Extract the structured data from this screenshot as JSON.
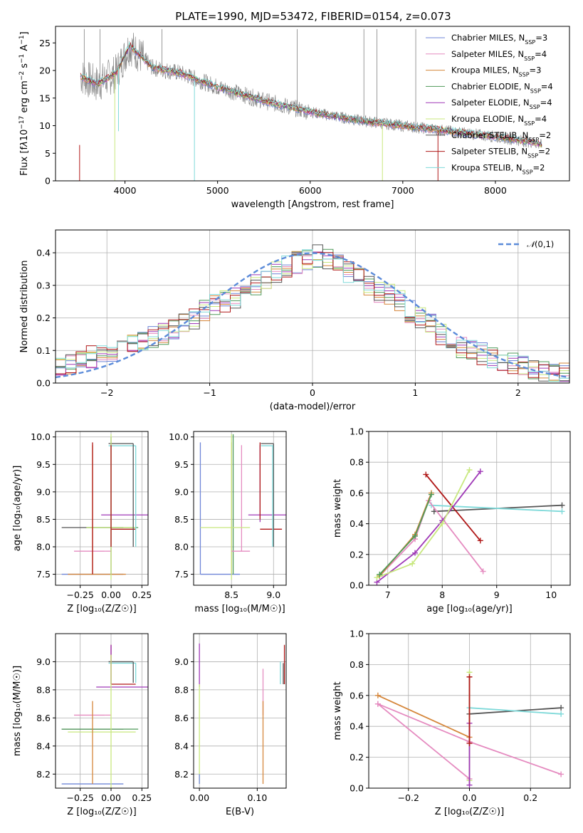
{
  "title": "PLATE=1990, MJD=53472, FIBERID=0154, z=0.073",
  "colors": {
    "chabrier_miles": "#6f86d8",
    "salpeter_miles": "#e58bc0",
    "kroupa_miles": "#d5863a",
    "chabrier_elodie": "#4f9a5a",
    "salpeter_elodie": "#9f39b7",
    "kroupa_elodie": "#c8e87e",
    "chabrier_stelib": "#555555",
    "salpeter_stelib": "#b01818",
    "kroupa_stelib": "#7ed9d9",
    "data": "#808080",
    "normal": "#5b8bd9",
    "grid": "#b0b0b0"
  },
  "chart_data": [
    {
      "type": "line",
      "xlabel": "wavelength [Angstrom, rest frame]",
      "ylabel_html": "Flux [f<tspan font-style='italic'>λ</tspan>10<tspan baseline-shift='super' font-size='9'>−17</tspan> erg cm<tspan baseline-shift='super' font-size='9'>−2</tspan> s<tspan baseline-shift='super' font-size='9'>−1</tspan> A<tspan baseline-shift='super' font-size='9'>−1</tspan>]",
      "xlim": [
        3250,
        8800
      ],
      "ylim": [
        0,
        28
      ],
      "xticks": [
        4000,
        5000,
        6000,
        7000,
        8000
      ],
      "yticks": [
        0,
        5,
        10,
        15,
        20,
        25
      ],
      "grid": false,
      "legend_position": "top-right",
      "legend": [
        {
          "text": "Chabrier MILES, N",
          "sub": "SSP",
          "tail": "=3",
          "color_key": "chabrier_miles"
        },
        {
          "text": "Salpeter MILES, N",
          "sub": "SSP",
          "tail": "=4",
          "color_key": "salpeter_miles"
        },
        {
          "text": "Kroupa MILES, N",
          "sub": "SSP",
          "tail": "=3",
          "color_key": "kroupa_miles"
        },
        {
          "text": "Chabrier ELODIE, N",
          "sub": "SSP",
          "tail": "=4",
          "color_key": "chabrier_elodie"
        },
        {
          "text": "Salpeter ELODIE, N",
          "sub": "SSP",
          "tail": "=4",
          "color_key": "salpeter_elodie"
        },
        {
          "text": "Kroupa ELODIE, N",
          "sub": "SSP",
          "tail": "=4",
          "color_key": "kroupa_elodie"
        },
        {
          "text": "Chabrier STELIB, N",
          "sub": "SSP",
          "tail": "=2",
          "color_key": "chabrier_stelib"
        },
        {
          "text": "Salpeter STELIB, N",
          "sub": "SSP",
          "tail": "=2",
          "color_key": "salpeter_stelib"
        },
        {
          "text": "Kroupa STELIB, N",
          "sub": "SSP",
          "tail": "=2",
          "color_key": "kroupa_stelib"
        }
      ],
      "continuum_points": [
        [
          3520,
          19.0
        ],
        [
          3700,
          17.5
        ],
        [
          3900,
          19.5
        ],
        [
          4050,
          24.5
        ],
        [
          4300,
          20.5
        ],
        [
          4600,
          19.5
        ],
        [
          5000,
          17.0
        ],
        [
          5500,
          14.5
        ],
        [
          6000,
          12.5
        ],
        [
          6500,
          11.0
        ],
        [
          7000,
          10.0
        ],
        [
          7500,
          9.0
        ],
        [
          8000,
          8.0
        ],
        [
          8400,
          7.0
        ],
        [
          8500,
          6.5
        ]
      ],
      "model_dips": [
        [
          3510,
          0.0,
          "salpeter_stelib"
        ],
        [
          3890,
          0.0,
          "kroupa_elodie"
        ],
        [
          3930,
          9.0,
          "kroupa_stelib"
        ],
        [
          4750,
          0.0,
          "kroupa_stelib"
        ],
        [
          6780,
          0.0,
          "kroupa_elodie"
        ],
        [
          7380,
          0.0,
          "salpeter_stelib"
        ]
      ],
      "data_spikes": [
        [
          3560,
          27.5
        ],
        [
          3730,
          27.5
        ],
        [
          4400,
          27.5
        ],
        [
          5860,
          27.5
        ],
        [
          6580,
          27.5
        ],
        [
          6720,
          27.5
        ],
        [
          7140,
          27.5
        ]
      ]
    },
    {
      "type": "bar",
      "xlabel": "(data-model)/error",
      "ylabel": "Normed distribution",
      "xlim": [
        -2.5,
        2.5
      ],
      "ylim": [
        0,
        0.47
      ],
      "xticks": [
        -2,
        -1,
        0,
        1,
        2
      ],
      "yticks": [
        0.0,
        0.1,
        0.2,
        0.3,
        0.4
      ],
      "grid": true,
      "legend_position": "top-right",
      "normal_label": "(0,1)",
      "bins": {
        "start": -2.5,
        "width": 0.1,
        "count": 50
      },
      "histogram_mean": [
        0.05,
        0.06,
        0.07,
        0.08,
        0.09,
        0.1,
        0.11,
        0.12,
        0.13,
        0.14,
        0.15,
        0.16,
        0.18,
        0.2,
        0.22,
        0.24,
        0.25,
        0.26,
        0.28,
        0.3,
        0.32,
        0.34,
        0.36,
        0.37,
        0.38,
        0.39,
        0.38,
        0.36,
        0.34,
        0.32,
        0.3,
        0.28,
        0.27,
        0.25,
        0.22,
        0.2,
        0.18,
        0.15,
        0.13,
        0.11,
        0.1,
        0.09,
        0.08,
        0.07,
        0.06,
        0.05,
        0.045,
        0.04,
        0.035,
        0.03
      ]
    },
    {
      "type": "scatter",
      "xlabel": "Z [log₁₀(Z/Z☉)]",
      "ylabel": "age  [log₁₀(age/yr)]",
      "xlim": [
        -0.45,
        0.3
      ],
      "ylim": [
        7.3,
        10.1
      ],
      "xticks": [
        -0.25,
        0.0,
        0.25
      ],
      "xticklabels": [
        "−0.25",
        "0.00",
        "0.25"
      ],
      "yticks": [
        7.5,
        8.0,
        8.5,
        9.0,
        9.5,
        10.0
      ],
      "grid": true,
      "segments": [
        [
          "chabrier_stelib",
          -0.4,
          8.35,
          0.1,
          8.35
        ],
        [
          "chabrier_miles",
          -0.4,
          7.5,
          0.1,
          7.5
        ],
        [
          "kroupa_miles",
          -0.35,
          7.5,
          0.12,
          7.5
        ],
        [
          "salpeter_miles",
          -0.3,
          7.92,
          -0.05,
          7.92
        ],
        [
          "salpeter_miles",
          -0.05,
          7.92,
          0.0,
          7.92
        ],
        [
          "chabrier_elodie",
          -0.2,
          8.35,
          0.22,
          8.35
        ],
        [
          "kroupa_elodie",
          -0.2,
          8.35,
          0.2,
          8.35
        ],
        [
          "salpeter_elodie",
          -0.08,
          8.58,
          0.3,
          8.58
        ],
        [
          "salpeter_stelib",
          0.0,
          8.32,
          0.2,
          8.32
        ],
        [
          "chabrier_stelib",
          -0.02,
          9.88,
          0.18,
          9.88
        ],
        [
          "kroupa_stelib",
          -0.02,
          9.84,
          0.2,
          9.84
        ],
        [
          "chabrier_stelib",
          0.0,
          7.5,
          0.0,
          10.0
        ],
        [
          "kroupa_miles",
          -0.15,
          7.5,
          -0.15,
          9.85
        ],
        [
          "salpeter_stelib",
          -0.15,
          7.5,
          -0.15,
          9.9
        ],
        [
          "kroupa_elodie",
          0.0,
          7.4,
          0.0,
          10.05
        ],
        [
          "salpeter_stelib",
          0.0,
          8.0,
          0.0,
          9.85
        ],
        [
          "chabrier_stelib",
          0.18,
          8.0,
          0.18,
          9.88
        ],
        [
          "kroupa_stelib",
          0.2,
          8.0,
          0.2,
          9.84
        ]
      ]
    },
    {
      "type": "scatter",
      "xlabel": "mass [log₁₀(M/M☉)]",
      "ylabel": "",
      "xlim": [
        8.05,
        9.15
      ],
      "ylim": [
        7.3,
        10.1
      ],
      "xticks": [
        8.5,
        9.0
      ],
      "yticks": [
        7.5,
        8.0,
        8.5,
        9.0,
        9.5,
        10.0
      ],
      "grid": true,
      "segments": [
        [
          "chabrier_miles",
          8.13,
          7.5,
          8.13,
          9.9
        ],
        [
          "chabrier_miles",
          8.13,
          7.5,
          8.6,
          7.5
        ],
        [
          "kroupa_miles",
          8.5,
          7.5,
          8.5,
          9.9
        ],
        [
          "chabrier_elodie",
          8.52,
          7.5,
          8.52,
          10.05
        ],
        [
          "kroupa_elodie",
          8.5,
          7.4,
          8.5,
          10.05
        ],
        [
          "salpeter_miles",
          8.62,
          7.92,
          8.62,
          9.85
        ],
        [
          "salpeter_miles",
          8.5,
          7.92,
          8.72,
          7.92
        ],
        [
          "kroupa_elodie",
          8.13,
          8.35,
          8.72,
          8.35
        ],
        [
          "salpeter_elodie",
          8.84,
          8.45,
          8.84,
          9.85
        ],
        [
          "salpeter_elodie",
          8.7,
          8.58,
          9.15,
          8.58
        ],
        [
          "salpeter_stelib",
          8.84,
          8.32,
          9.1,
          8.32
        ],
        [
          "salpeter_stelib",
          8.84,
          8.5,
          8.84,
          9.9
        ],
        [
          "chabrier_stelib",
          8.85,
          9.88,
          9.0,
          9.88
        ],
        [
          "kroupa_stelib",
          8.85,
          9.84,
          9.0,
          9.84
        ],
        [
          "chabrier_stelib",
          9.0,
          8.0,
          9.0,
          9.88
        ],
        [
          "kroupa_stelib",
          8.99,
          8.0,
          8.99,
          9.84
        ]
      ]
    },
    {
      "type": "line",
      "xlabel": "age  [log₁₀(age/yr)]",
      "ylabel": "mass weight",
      "xlim": [
        6.65,
        10.35
      ],
      "ylim": [
        0.0,
        1.0
      ],
      "xticks": [
        7,
        8,
        9,
        10
      ],
      "yticks": [
        0.0,
        0.2,
        0.4,
        0.6,
        0.8,
        1.0
      ],
      "grid": true,
      "series": [
        {
          "color_key": "chabrier_stelib",
          "x": [
            7.85,
            10.2
          ],
          "y": [
            0.48,
            0.52
          ]
        },
        {
          "color_key": "kroupa_stelib",
          "x": [
            7.8,
            10.2
          ],
          "y": [
            0.52,
            0.48
          ]
        },
        {
          "color_key": "salpeter_stelib",
          "x": [
            7.7,
            8.7
          ],
          "y": [
            0.72,
            0.29
          ]
        },
        {
          "color_key": "salpeter_miles",
          "x": [
            6.85,
            7.5,
            7.75,
            8.75
          ],
          "y": [
            0.06,
            0.3,
            0.55,
            0.09
          ]
        },
        {
          "color_key": "kroupa_miles",
          "x": [
            6.85,
            7.5,
            7.8
          ],
          "y": [
            0.06,
            0.33,
            0.6
          ]
        },
        {
          "color_key": "salpeter_elodie",
          "x": [
            6.8,
            7.5,
            8.0,
            8.7
          ],
          "y": [
            0.02,
            0.21,
            0.42,
            0.74
          ]
        },
        {
          "color_key": "kroupa_elodie",
          "x": [
            6.8,
            7.45,
            8.0,
            8.5
          ],
          "y": [
            0.05,
            0.14,
            0.4,
            0.75
          ]
        },
        {
          "color_key": "chabrier_elodie",
          "x": [
            6.85,
            7.5,
            7.8
          ],
          "y": [
            0.07,
            0.32,
            0.59
          ]
        }
      ]
    },
    {
      "type": "scatter",
      "xlabel": "Z [log₁₀(Z/Z☉)]",
      "ylabel": "mass [log₁₀(M/M☉)]",
      "xlim": [
        -0.45,
        0.3
      ],
      "ylim": [
        8.1,
        9.2
      ],
      "xticks": [
        -0.25,
        0.0,
        0.25
      ],
      "xticklabels": [
        "−0.25",
        "0.00",
        "0.25"
      ],
      "yticks": [
        8.2,
        8.4,
        8.6,
        8.8,
        9.0
      ],
      "grid": true,
      "segments": [
        [
          "chabrier_miles",
          -0.4,
          8.13,
          0.1,
          8.13
        ],
        [
          "chabrier_stelib",
          -0.4,
          8.52,
          0.1,
          8.52
        ],
        [
          "chabrier_elodie",
          -0.4,
          8.52,
          0.22,
          8.52
        ],
        [
          "kroupa_elodie",
          -0.35,
          8.5,
          0.2,
          8.5
        ],
        [
          "salpeter_miles",
          -0.3,
          8.62,
          -0.05,
          8.62
        ],
        [
          "salpeter_miles",
          -0.05,
          8.62,
          0.0,
          8.62
        ],
        [
          "salpeter_elodie",
          -0.12,
          8.82,
          0.3,
          8.82
        ],
        [
          "salpeter_stelib",
          0.0,
          8.84,
          0.2,
          8.84
        ],
        [
          "chabrier_stelib",
          -0.02,
          9.0,
          0.18,
          9.0
        ],
        [
          "kroupa_stelib",
          -0.02,
          8.99,
          0.2,
          8.99
        ],
        [
          "kroupa_miles",
          -0.15,
          8.13,
          -0.15,
          8.72
        ],
        [
          "salpeter_stelib",
          0.0,
          8.84,
          0.0,
          9.12
        ],
        [
          "salpeter_elodie",
          0.0,
          8.84,
          0.0,
          9.12
        ],
        [
          "kroupa_elodie",
          0.0,
          8.1,
          0.0,
          9.05
        ],
        [
          "chabrier_stelib",
          0.18,
          8.85,
          0.18,
          9.0
        ],
        [
          "kroupa_stelib",
          0.2,
          8.85,
          0.2,
          8.99
        ]
      ]
    },
    {
      "type": "scatter",
      "xlabel": "E(B-V)",
      "ylabel": "",
      "xlim": [
        -0.01,
        0.15
      ],
      "ylim": [
        8.1,
        9.2
      ],
      "xticks": [
        0.0,
        0.1
      ],
      "yticks": [
        8.2,
        8.4,
        8.6,
        8.8,
        9.0
      ],
      "grid": true,
      "segments": [
        [
          "salpeter_elodie",
          0.0,
          8.82,
          0.0,
          9.13
        ],
        [
          "kroupa_elodie",
          0.0,
          8.13,
          0.0,
          8.84
        ],
        [
          "chabrier_miles",
          0.0,
          8.13,
          0.0,
          8.2
        ],
        [
          "salpeter_miles",
          0.11,
          8.62,
          0.11,
          8.95
        ],
        [
          "kroupa_miles",
          0.11,
          8.13,
          0.11,
          8.72
        ],
        [
          "kroupa_stelib",
          0.14,
          8.84,
          0.14,
          9.0
        ],
        [
          "chabrier_stelib",
          0.145,
          8.84,
          0.145,
          8.99
        ],
        [
          "salpeter_stelib",
          0.147,
          8.84,
          0.147,
          9.12
        ]
      ]
    },
    {
      "type": "line",
      "xlabel": "Z [log₁₀(Z/Z☉)]",
      "ylabel": "mass weight",
      "xlim": [
        -0.33,
        0.33
      ],
      "ylim": [
        0.0,
        1.0
      ],
      "xticks": [
        -0.2,
        0.0,
        0.2
      ],
      "xticklabels": [
        "−0.2",
        "0.0",
        "0.2"
      ],
      "yticks": [
        0.0,
        0.2,
        0.4,
        0.6,
        0.8,
        1.0
      ],
      "grid": true,
      "series": [
        {
          "color_key": "kroupa_miles",
          "x": [
            -0.3,
            0.0
          ],
          "y": [
            0.6,
            0.33
          ]
        },
        {
          "color_key": "salpeter_miles",
          "x": [
            -0.3,
            0.0,
            0.3
          ],
          "y": [
            0.545,
            0.3,
            0.09
          ]
        },
        {
          "color_key": "salpeter_miles",
          "x": [
            -0.3,
            0.0
          ],
          "y": [
            0.545,
            0.06
          ]
        },
        {
          "color_key": "chabrier_stelib",
          "x": [
            0.0,
            0.3
          ],
          "y": [
            0.48,
            0.52
          ]
        },
        {
          "color_key": "kroupa_stelib",
          "x": [
            0.0,
            0.3
          ],
          "y": [
            0.52,
            0.48
          ]
        },
        {
          "color_key": "kroupa_elodie",
          "x": [
            0.0,
            0.0
          ],
          "y": [
            0.05,
            0.75
          ]
        },
        {
          "color_key": "salpeter_elodie",
          "x": [
            0.0,
            0.0
          ],
          "y": [
            0.02,
            0.42
          ]
        },
        {
          "color_key": "salpeter_stelib",
          "x": [
            0.0,
            0.0
          ],
          "y": [
            0.29,
            0.72
          ]
        }
      ]
    }
  ]
}
